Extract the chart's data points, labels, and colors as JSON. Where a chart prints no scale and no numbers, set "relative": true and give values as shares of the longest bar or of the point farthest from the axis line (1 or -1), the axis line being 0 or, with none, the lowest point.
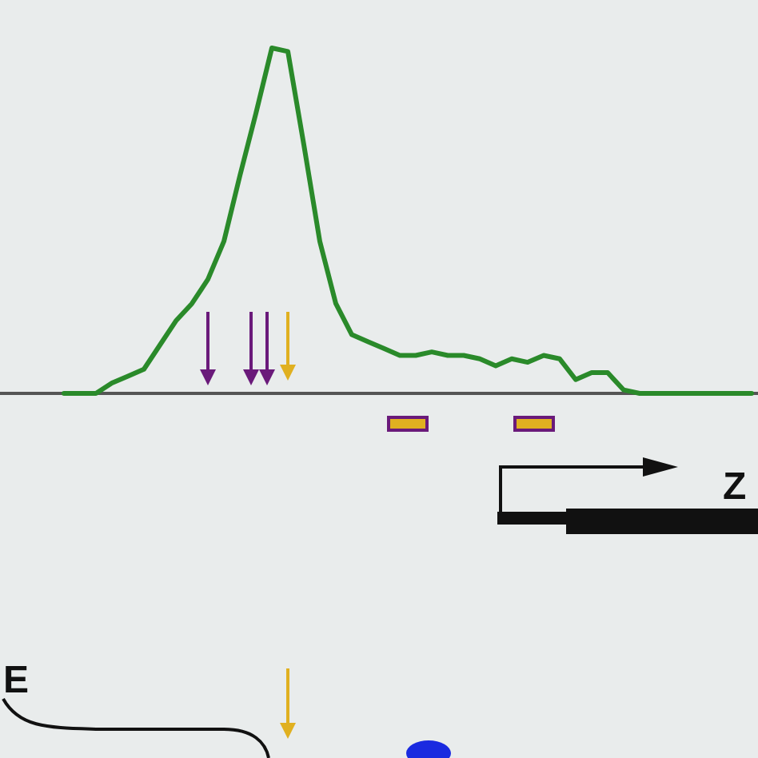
{
  "chart_data": {
    "type": "line",
    "relative": true,
    "categories": [
      null,
      null,
      null,
      null,
      null,
      null,
      null,
      null,
      null,
      null,
      null,
      null,
      null,
      null,
      null,
      null,
      null,
      null,
      null,
      null,
      null,
      null,
      null,
      null,
      null,
      null,
      null,
      null,
      null,
      null,
      null,
      null,
      null,
      null,
      null,
      null,
      null,
      null,
      null,
      null,
      null,
      null,
      null,
      null
    ],
    "series": [
      {
        "color": "#2a8a2a",
        "values": [
          0,
          0,
          0,
          0.03,
          0.05,
          0.07,
          0.14,
          0.21,
          0.26,
          0.33,
          0.44,
          0.63,
          0.81,
          1,
          0.99,
          0.72,
          0.44,
          0.26,
          0.17,
          0.15,
          0.13,
          0.11,
          0.11,
          0.12,
          0.11,
          0.11,
          0.1,
          0.08,
          0.1,
          0.09,
          0.11,
          0.1,
          0.04,
          0.06,
          0.06,
          0.01,
          0,
          0,
          0,
          0,
          0,
          0,
          0,
          0
        ]
      }
    ],
    "annotations": [
      "Z",
      "E"
    ],
    "marker": "none",
    "line_style": "solid",
    "grid": false
  }
}
